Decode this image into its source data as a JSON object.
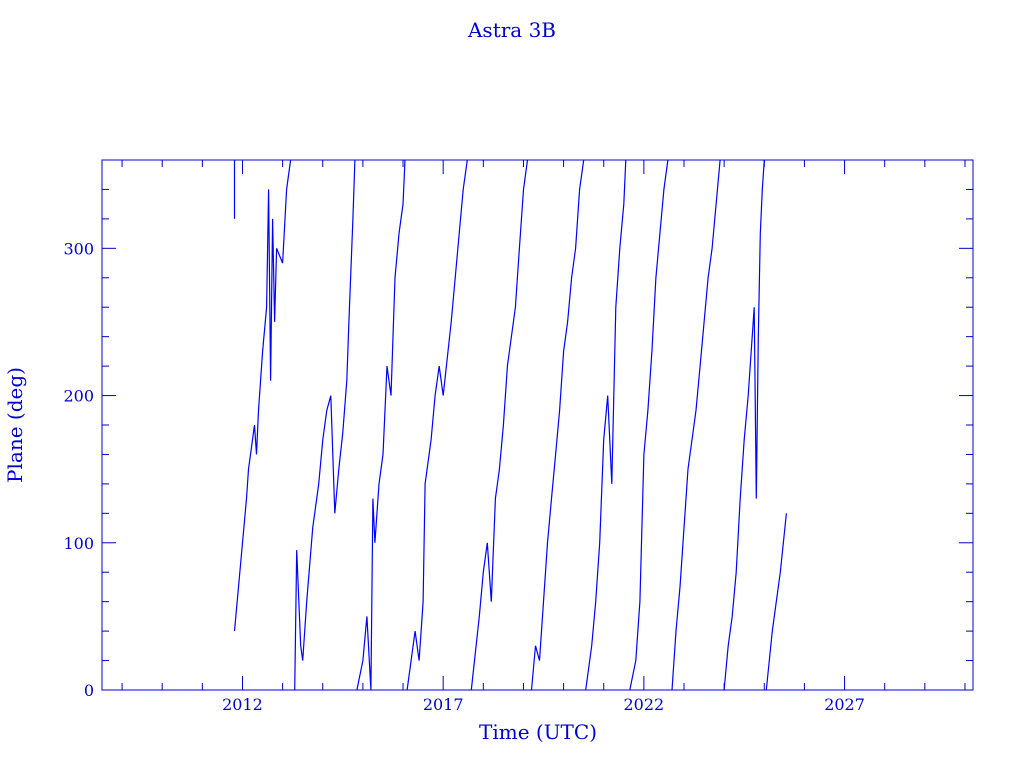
{
  "colors": {
    "axis": "#0000cc",
    "series": "#0000ff",
    "background": "#ffffff"
  },
  "chart_data": {
    "type": "line",
    "title": "Astra 3B",
    "xlabel": "Time (UTC)",
    "ylabel": "Plane (deg)",
    "xlim": [
      2008.5,
      2030.2
    ],
    "ylim": [
      0,
      360
    ],
    "x_ticks": [
      "2012",
      "2017",
      "2022",
      "2027"
    ],
    "x_tick_values": [
      2012,
      2017,
      2022,
      2027
    ],
    "y_ticks": [
      "0",
      "100",
      "200",
      "300"
    ],
    "y_tick_values": [
      0,
      100,
      200,
      300
    ],
    "grid": false,
    "legend": "none",
    "series": [
      {
        "values": [
          [
            2011.8,
            320
          ],
          [
            2011.8,
            360
          ],
          [
            2011.8,
            40
          ],
          [
            2011.9,
            70
          ],
          [
            2012.0,
            100
          ],
          [
            2012.1,
            130
          ],
          [
            2012.15,
            150
          ],
          [
            2012.3,
            180
          ],
          [
            2012.35,
            160
          ],
          [
            2012.4,
            190
          ],
          [
            2012.5,
            230
          ],
          [
            2012.6,
            260
          ],
          [
            2012.65,
            340
          ],
          [
            2012.7,
            210
          ],
          [
            2012.75,
            320
          ],
          [
            2012.8,
            250
          ],
          [
            2012.85,
            300
          ],
          [
            2013.0,
            290
          ],
          [
            2013.1,
            340
          ],
          [
            2013.2,
            360
          ],
          [
            2013.3,
            0
          ],
          [
            2013.35,
            95
          ],
          [
            2013.45,
            30
          ],
          [
            2013.5,
            20
          ],
          [
            2013.6,
            60
          ],
          [
            2013.75,
            110
          ],
          [
            2013.9,
            140
          ],
          [
            2014.0,
            170
          ],
          [
            2014.1,
            190
          ],
          [
            2014.2,
            200
          ],
          [
            2014.3,
            120
          ],
          [
            2014.4,
            150
          ],
          [
            2014.5,
            175
          ],
          [
            2014.6,
            210
          ],
          [
            2014.65,
            250
          ],
          [
            2014.75,
            320
          ],
          [
            2014.8,
            360
          ],
          [
            2014.85,
            0
          ],
          [
            2015.0,
            20
          ],
          [
            2015.1,
            50
          ],
          [
            2015.2,
            0
          ],
          [
            2015.25,
            130
          ],
          [
            2015.3,
            100
          ],
          [
            2015.4,
            140
          ],
          [
            2015.5,
            160
          ],
          [
            2015.6,
            220
          ],
          [
            2015.7,
            200
          ],
          [
            2015.8,
            280
          ],
          [
            2015.9,
            310
          ],
          [
            2016.0,
            330
          ],
          [
            2016.05,
            360
          ],
          [
            2016.1,
            0
          ],
          [
            2016.3,
            40
          ],
          [
            2016.4,
            20
          ],
          [
            2016.5,
            60
          ],
          [
            2016.55,
            140
          ],
          [
            2016.7,
            170
          ],
          [
            2016.8,
            200
          ],
          [
            2016.9,
            220
          ],
          [
            2017.0,
            200
          ],
          [
            2017.2,
            250
          ],
          [
            2017.3,
            280
          ],
          [
            2017.4,
            310
          ],
          [
            2017.5,
            340
          ],
          [
            2017.6,
            360
          ],
          [
            2017.7,
            0
          ],
          [
            2017.9,
            50
          ],
          [
            2018.0,
            80
          ],
          [
            2018.1,
            100
          ],
          [
            2018.2,
            60
          ],
          [
            2018.3,
            130
          ],
          [
            2018.4,
            150
          ],
          [
            2018.5,
            180
          ],
          [
            2018.6,
            220
          ],
          [
            2018.8,
            260
          ],
          [
            2018.9,
            300
          ],
          [
            2019.0,
            340
          ],
          [
            2019.1,
            360
          ],
          [
            2019.2,
            0
          ],
          [
            2019.3,
            30
          ],
          [
            2019.4,
            20
          ],
          [
            2019.5,
            60
          ],
          [
            2019.6,
            100
          ],
          [
            2019.7,
            130
          ],
          [
            2019.8,
            160
          ],
          [
            2019.9,
            190
          ],
          [
            2020.0,
            230
          ],
          [
            2020.1,
            250
          ],
          [
            2020.2,
            280
          ],
          [
            2020.3,
            300
          ],
          [
            2020.4,
            340
          ],
          [
            2020.5,
            360
          ],
          [
            2020.55,
            0
          ],
          [
            2020.7,
            30
          ],
          [
            2020.8,
            60
          ],
          [
            2020.9,
            100
          ],
          [
            2021.0,
            170
          ],
          [
            2021.1,
            200
          ],
          [
            2021.2,
            140
          ],
          [
            2021.3,
            260
          ],
          [
            2021.4,
            300
          ],
          [
            2021.5,
            330
          ],
          [
            2021.55,
            360
          ],
          [
            2021.65,
            0
          ],
          [
            2021.8,
            20
          ],
          [
            2021.9,
            60
          ],
          [
            2022.0,
            160
          ],
          [
            2022.1,
            190
          ],
          [
            2022.2,
            230
          ],
          [
            2022.3,
            280
          ],
          [
            2022.4,
            310
          ],
          [
            2022.5,
            340
          ],
          [
            2022.6,
            360
          ],
          [
            2022.7,
            0
          ],
          [
            2022.8,
            40
          ],
          [
            2022.9,
            70
          ],
          [
            2023.0,
            110
          ],
          [
            2023.1,
            150
          ],
          [
            2023.3,
            190
          ],
          [
            2023.4,
            220
          ],
          [
            2023.5,
            250
          ],
          [
            2023.6,
            280
          ],
          [
            2023.7,
            300
          ],
          [
            2023.8,
            330
          ],
          [
            2023.9,
            360
          ],
          [
            2024.0,
            0
          ],
          [
            2024.1,
            30
          ],
          [
            2024.2,
            50
          ],
          [
            2024.3,
            80
          ],
          [
            2024.4,
            130
          ],
          [
            2024.5,
            170
          ],
          [
            2024.6,
            200
          ],
          [
            2024.7,
            240
          ],
          [
            2024.75,
            260
          ],
          [
            2024.8,
            130
          ],
          [
            2024.85,
            240
          ],
          [
            2024.9,
            310
          ],
          [
            2024.95,
            340
          ],
          [
            2025.0,
            360
          ],
          [
            2025.05,
            0
          ],
          [
            2025.2,
            40
          ],
          [
            2025.4,
            80
          ],
          [
            2025.55,
            120
          ]
        ]
      }
    ]
  }
}
